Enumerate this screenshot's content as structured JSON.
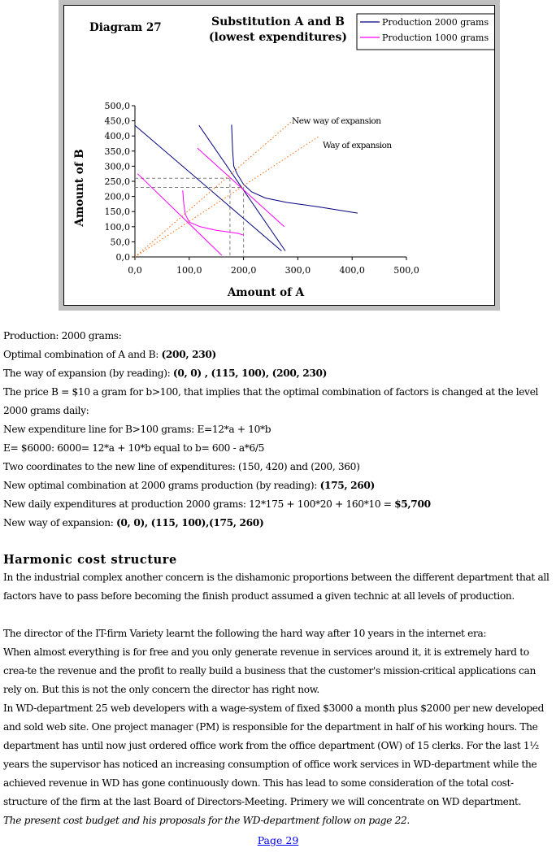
{
  "figure": {
    "diagram_label": "Diagram 27",
    "title_line1": "Substitution A and B",
    "title_line2": "(lowest expenditures)",
    "annotation_new_way": "New way of expansion",
    "annotation_way": "Way of expansion"
  },
  "chart_data": {
    "type": "line",
    "xlabel": "Amount of A",
    "ylabel": "Amount of B",
    "xlim": [
      0,
      500
    ],
    "ylim": [
      0,
      500
    ],
    "x_ticks": [
      "0,0",
      "100,0",
      "200,0",
      "300,0",
      "400,0",
      "500,0"
    ],
    "y_ticks": [
      "0,0",
      "50,0",
      "100,0",
      "150,0",
      "200,0",
      "250,0",
      "300,0",
      "350,0",
      "400,0",
      "450,0",
      "500,0"
    ],
    "legend": {
      "placement": "top-right"
    },
    "series": [
      {
        "name": "Production 2000 grams",
        "color": "#000080",
        "points": [
          [
            178,
            437
          ],
          [
            180,
            350
          ],
          [
            182,
            300
          ],
          [
            188,
            275
          ],
          [
            200,
            240
          ],
          [
            215,
            215
          ],
          [
            240,
            195
          ],
          [
            280,
            180
          ],
          [
            340,
            165
          ],
          [
            410,
            145
          ]
        ]
      },
      {
        "name": "Production 1000 grams",
        "color": "#ff00ff",
        "points": [
          [
            88,
            220
          ],
          [
            90,
            175
          ],
          [
            93,
            140
          ],
          [
            100,
            115
          ],
          [
            120,
            100
          ],
          [
            150,
            88
          ],
          [
            190,
            78
          ],
          [
            200,
            72
          ]
        ]
      },
      {
        "name": "",
        "style": "budget line",
        "color": "#000080",
        "points": [
          [
            0,
            435
          ],
          [
            270,
            20
          ]
        ]
      },
      {
        "name": "",
        "style": "budget line",
        "color": "#000080",
        "points": [
          [
            118,
            435
          ],
          [
            277,
            20
          ]
        ]
      },
      {
        "name": "",
        "style": "budget line",
        "color": "#ff00ff",
        "points": [
          [
            115,
            360
          ],
          [
            275,
            100
          ]
        ]
      },
      {
        "name": "",
        "style": "budget line",
        "color": "#ff00ff",
        "points": [
          [
            5,
            275
          ],
          [
            160,
            5
          ]
        ]
      },
      {
        "name": "",
        "style": "expansion path",
        "color": "#ff6600",
        "points": [
          [
            0,
            0
          ],
          [
            290,
            450
          ]
        ]
      },
      {
        "name": "",
        "style": "expansion path",
        "color": "#ff6600",
        "points": [
          [
            0,
            0
          ],
          [
            340,
            400
          ]
        ]
      }
    ],
    "reference_points": [
      [
        175,
        260
      ],
      [
        200,
        230
      ]
    ]
  },
  "text": {
    "l1": "Production: 2000 grams:",
    "l2_pre": "Optimal combination of A and B: ",
    "l2_b": "(200, 230)",
    "l3_pre": "The way of expansion (by reading): ",
    "l3_b": "(0, 0) , (115, 100), (200, 230)",
    "l4": "The price B = $10 a gram for b>100, that implies that the optimal combination of factors is changed at the level 2000 grams daily:",
    "l5": "New expenditure line for B>100 grams: E=12*a + 10*b",
    "l6": "E= $6000:  6000= 12*a + 10*b equal to b= 600 - a*6/5",
    "l7": "Two coordinates to the new line of expenditures: (150,  420) and (200, 360)",
    "l8_pre": "New optimal combination at 2000 grams production (by reading): ",
    "l8_b": "(175, 260)",
    "l9_pre": "New daily expenditures at production 2000 grams:  12*175 + 100*20 + 160*10 = ",
    "l9_b": "$5,700",
    "l10_pre": "New way of expansion: ",
    "l10_b": "(0, 0), (115, 100),(175, 260)"
  },
  "section": {
    "heading": "Harmonic cost structure",
    "p1": "In the industrial complex another concern is the dishamonic proportions between the different department that all factors have to pass before becoming the finish product assumed a given technic at all levels of production.",
    "p2a": "The director of the IT-firm Variety learnt the following the hard way after 10 years in the internet era:",
    "p2b": "When almost everything is for free and you only generate revenue in services around it, it is extremely hard to crea-te the revenue and the profit to really build a business that the customer's mission-critical applications can rely on. But this is not the only concern the director has right now.",
    "p3": "In WD-department 25 web developers with a wage-system of fixed $3000 a month plus $2000 per new developed and sold web site. One project manager (PM) is responsible for the department in half of his working hours.  The department has until now just ordered office work from the office department (OW) of 15 clerks. For the last 1½ years the supervisor has noticed an increasing consumption of office work services in WD-department while the achieved revenue in WD has gone continuously down. This has lead to some consideration of the total cost-structure of the firm at the last Board of Directors-Meeting. Primery we will concentrate on WD department.",
    "p4": "The present cost budget and his proposals for the WD-department follow on page 22.",
    "page_link": "Page 29"
  }
}
